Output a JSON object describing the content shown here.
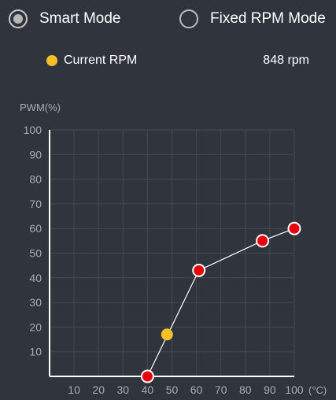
{
  "modes": {
    "smart_label": "Smart Mode",
    "fixed_label": "Fixed RPM Mode",
    "selected": "smart"
  },
  "current_rpm": {
    "label": "Current RPM",
    "value": "848 rpm",
    "color": "#f5c12a"
  },
  "colors": {
    "background": "#2f343d",
    "grid": "#454a52",
    "axis": "#ffffff",
    "tick_text": "#a8acb2",
    "curve_point": "#e8000a",
    "curve_line": "#ffffff"
  },
  "chart_data": {
    "type": "line",
    "ylabel": "PWM(%)",
    "xlabel": "(°C)",
    "xlim": [
      0,
      100
    ],
    "ylim": [
      0,
      100
    ],
    "x_ticks": [
      10,
      20,
      30,
      40,
      50,
      60,
      70,
      80,
      90,
      100
    ],
    "y_ticks": [
      10,
      20,
      30,
      40,
      50,
      60,
      70,
      80,
      90,
      100
    ],
    "grid": true,
    "series": [
      {
        "x": [
          40,
          61,
          87,
          100
        ],
        "y": [
          0,
          43,
          55,
          60
        ]
      }
    ],
    "current_point": {
      "x": 48,
      "y": 17
    }
  }
}
